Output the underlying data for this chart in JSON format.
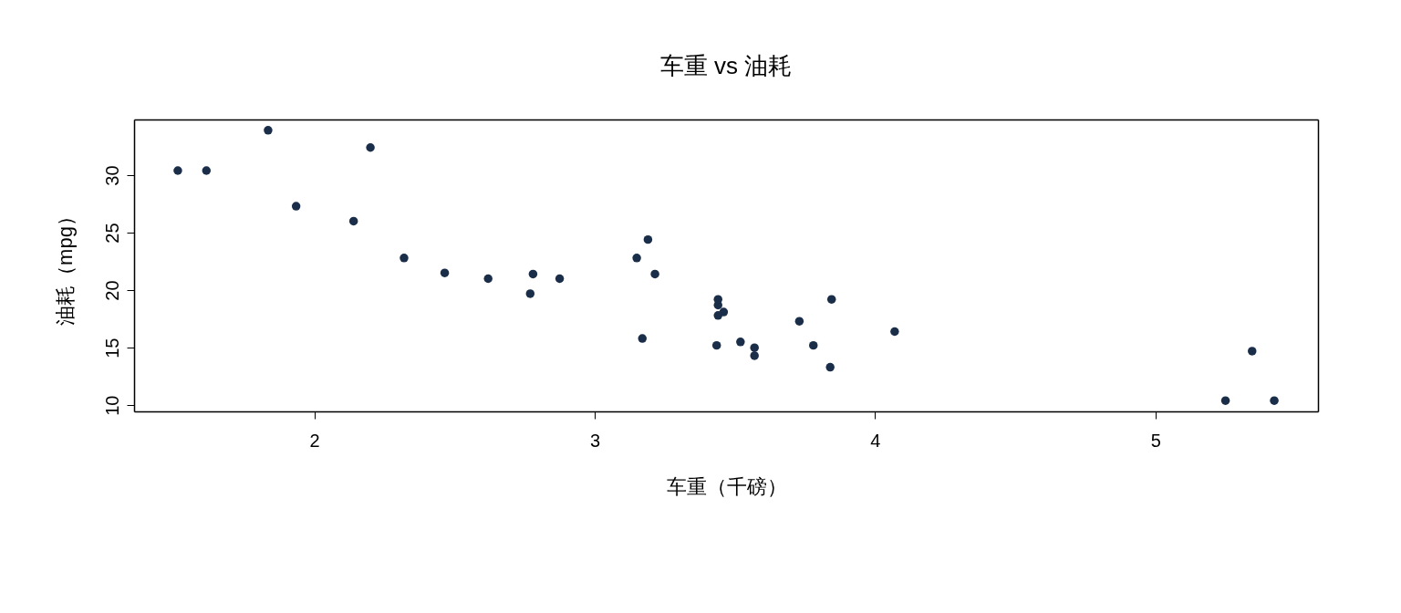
{
  "chart_data": {
    "type": "scatter",
    "title": "车重 vs 油耗",
    "xlabel": "车重（千磅）",
    "ylabel": "油耗（mpg）",
    "x": [
      2.62,
      2.875,
      2.32,
      3.215,
      3.44,
      3.46,
      3.57,
      3.19,
      3.15,
      3.44,
      3.44,
      4.07,
      3.73,
      3.78,
      5.25,
      5.424,
      5.345,
      2.2,
      1.615,
      1.835,
      2.465,
      3.52,
      3.435,
      3.84,
      3.845,
      1.935,
      2.14,
      1.513,
      3.17,
      2.77,
      3.57,
      2.78
    ],
    "series": [
      {
        "color": "#1a2e4a",
        "values": [
          21.0,
          21.0,
          22.8,
          21.4,
          18.7,
          18.1,
          14.3,
          24.4,
          22.8,
          19.2,
          17.8,
          16.4,
          17.3,
          15.2,
          10.4,
          10.4,
          14.7,
          32.4,
          30.4,
          33.9,
          21.5,
          15.5,
          15.2,
          13.3,
          19.2,
          27.3,
          26.0,
          30.4,
          15.8,
          19.7,
          15.0,
          21.4
        ]
      }
    ],
    "xlim": [
      1.357,
      5.58
    ],
    "ylim": [
      9.46,
      34.84
    ],
    "xticks": [
      2,
      3,
      4,
      5
    ],
    "yticks": [
      10,
      15,
      20,
      25,
      30
    ],
    "marker": "circle",
    "grid": false,
    "legend": false
  }
}
